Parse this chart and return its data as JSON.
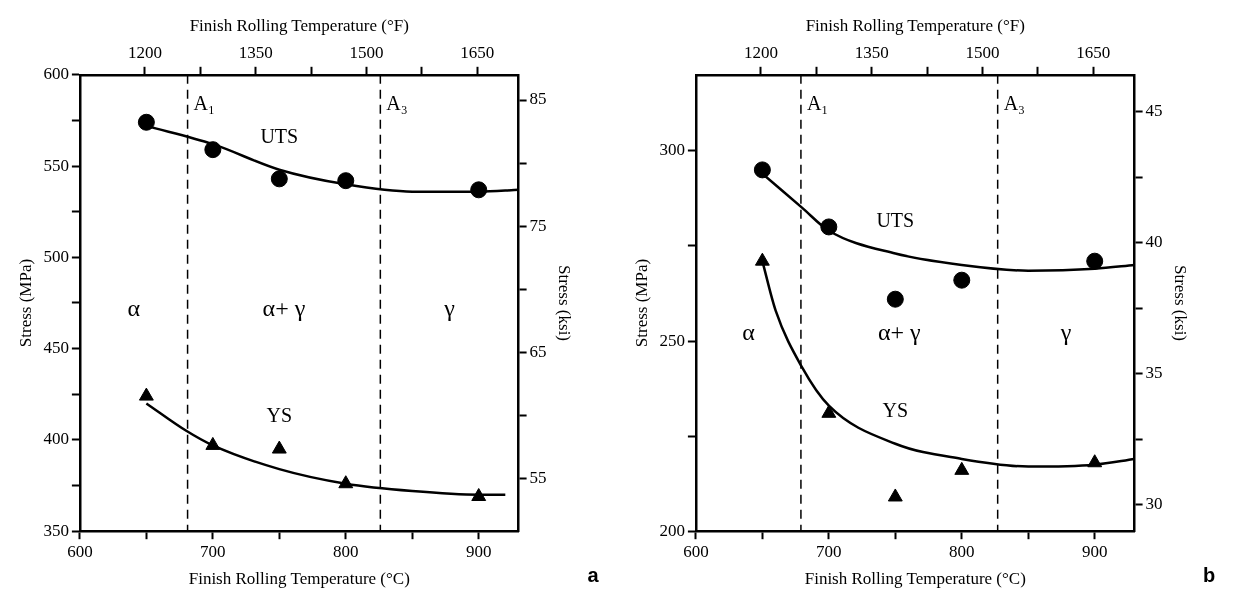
{
  "chart_data": [
    {
      "type": "scatter",
      "xlabel": "Finish Rolling Temperature (°C)",
      "x2label": "Finish Rolling Temperature (°F)",
      "ylabel": "Stress (MPa)",
      "y2label": "Stress (ksi)",
      "xlim": [
        600,
        930
      ],
      "xticks": [
        600,
        {
          "value": 650,
          "label": null
        },
        700,
        {
          "value": 750,
          "label": null
        },
        800,
        {
          "value": 850,
          "label": null
        },
        900
      ],
      "x2lim": [
        1112,
        1706
      ],
      "x2ticks": [
        1200,
        {
          "value": 1275,
          "label": null
        },
        1350,
        {
          "value": 1425,
          "label": null
        },
        1500,
        {
          "value": 1575,
          "label": null
        },
        1650
      ],
      "ylim": [
        350,
        600
      ],
      "yticks": [
        350,
        {
          "value": 375,
          "label": null
        },
        400,
        {
          "value": 425,
          "label": null
        },
        450,
        {
          "value": 475,
          "label": null
        },
        500,
        {
          "value": 525,
          "label": null
        },
        550,
        {
          "value": 575,
          "label": null
        },
        600
      ],
      "y2lim": [
        50.8,
        87.0
      ],
      "y2ticks": [
        55,
        {
          "value": 60,
          "label": null
        },
        65,
        {
          "value": 70,
          "label": null
        },
        75,
        {
          "value": 80,
          "label": null
        },
        85
      ],
      "grid": false,
      "legend": false,
      "series": [
        {
          "type": "scatter",
          "name": "UTS",
          "marker": "circle",
          "color": "#000000",
          "x": [
            650,
            700,
            750,
            800,
            900
          ],
          "values": [
            574,
            559,
            543,
            542,
            537
          ]
        },
        {
          "type": "scatter",
          "name": "YS",
          "marker": "triangle",
          "color": "#000000",
          "x": [
            650,
            700,
            750,
            800,
            900
          ],
          "values": [
            424,
            397,
            395,
            376,
            369
          ]
        },
        {
          "type": "line",
          "marker": "none",
          "color": "#000000",
          "x": [
            650,
            700,
            750,
            800,
            850,
            900,
            930
          ],
          "values": [
            572,
            562,
            548,
            540,
            536,
            536,
            537
          ]
        },
        {
          "type": "line",
          "marker": "none",
          "color": "#000000",
          "x": [
            650,
            680,
            700,
            750,
            800,
            850,
            900,
            920
          ],
          "values": [
            420,
            405,
            397,
            384,
            376,
            372,
            370,
            370
          ]
        }
      ],
      "ref_lines": [
        {
          "axis": "x",
          "value": 681,
          "line_style": "dashed",
          "color": "#000000",
          "label": "A₁"
        },
        {
          "axis": "x",
          "value": 826,
          "line_style": "dashed",
          "color": "#000000",
          "label": "A₃"
        }
      ],
      "annotations": [
        "α",
        "α+ γ",
        "γ",
        "a"
      ]
    },
    {
      "type": "scatter",
      "xlabel": "Finish Rolling Temperature (°C)",
      "x2label": "Finish Rolling Temperature (°F)",
      "ylabel": "Stress (MPa)",
      "y2label": "Stress (ksi)",
      "xlim": [
        600,
        930
      ],
      "xticks": [
        600,
        {
          "value": 650,
          "label": null
        },
        700,
        {
          "value": 750,
          "label": null
        },
        800,
        {
          "value": 850,
          "label": null
        },
        900
      ],
      "x2lim": [
        1112,
        1706
      ],
      "x2ticks": [
        1200,
        {
          "value": 1275,
          "label": null
        },
        1350,
        {
          "value": 1425,
          "label": null
        },
        1500,
        {
          "value": 1575,
          "label": null
        },
        1650
      ],
      "ylim": [
        200,
        320
      ],
      "yticks": [
        200,
        {
          "value": 225,
          "label": null
        },
        250,
        {
          "value": 275,
          "label": null
        },
        300
      ],
      "y2lim": [
        29.0,
        46.4
      ],
      "y2ticks": [
        30,
        {
          "value": 32.5,
          "label": null
        },
        35,
        {
          "value": 37.5,
          "label": null
        },
        40,
        {
          "value": 42.5,
          "label": null
        },
        45
      ],
      "grid": false,
      "legend": false,
      "series": [
        {
          "type": "scatter",
          "name": "UTS",
          "marker": "circle",
          "color": "#000000",
          "x": [
            650,
            700,
            750,
            800,
            900
          ],
          "values": [
            295,
            280,
            261,
            266,
            271
          ]
        },
        {
          "type": "scatter",
          "name": "YS",
          "marker": "triangle",
          "color": "#000000",
          "x": [
            650,
            700,
            750,
            800,
            900
          ],
          "values": [
            271,
            231,
            209,
            216,
            218
          ]
        },
        {
          "type": "line",
          "marker": "none",
          "color": "#000000",
          "x": [
            650,
            680,
            700,
            750,
            800,
            850,
            900,
            930
          ],
          "values": [
            294,
            285,
            279,
            273,
            270,
            268.5,
            269,
            270
          ]
        },
        {
          "type": "line",
          "marker": "none",
          "color": "#000000",
          "x": [
            650,
            660,
            680,
            700,
            750,
            800,
            850,
            900,
            930
          ],
          "values": [
            271,
            258,
            243,
            233,
            223,
            219,
            217,
            217.5,
            219
          ]
        }
      ],
      "ref_lines": [
        {
          "axis": "x",
          "value": 679,
          "line_style": "dashed",
          "color": "#000000",
          "label": "A₁"
        },
        {
          "axis": "x",
          "value": 827,
          "line_style": "dashed",
          "color": "#000000",
          "label": "A₃"
        }
      ],
      "annotations": [
        "α",
        "α+ γ",
        "γ",
        "b"
      ]
    }
  ]
}
